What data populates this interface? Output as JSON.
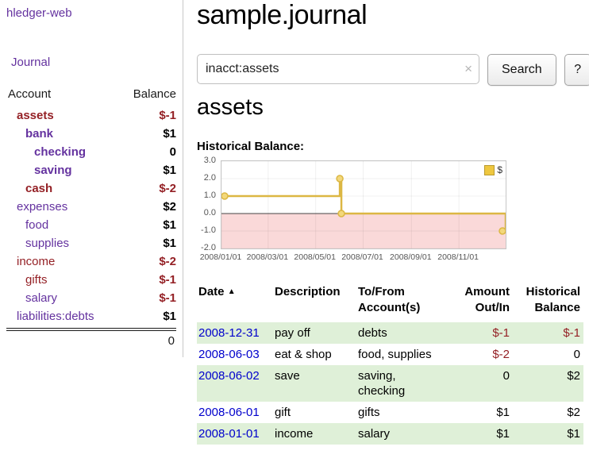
{
  "colors": {
    "purple": "#64329f",
    "negative": "#942025",
    "link": "#0000cc",
    "row_green": "#dff0d8"
  },
  "app": {
    "name": "hledger-web"
  },
  "nav": {
    "journal": "Journal"
  },
  "sidebar": {
    "header": {
      "account": "Account",
      "balance": "Balance"
    },
    "accounts": [
      {
        "name": "assets",
        "depth": 1,
        "balance": "$-1"
      },
      {
        "name": "bank",
        "depth": 2,
        "balance": "$1"
      },
      {
        "name": "checking",
        "depth": 3,
        "balance": "0"
      },
      {
        "name": "saving",
        "depth": 3,
        "balance": "$1"
      },
      {
        "name": "cash",
        "depth": 2,
        "balance": "$-2"
      },
      {
        "name": "expenses",
        "depth": 1,
        "balance": "$2"
      },
      {
        "name": "food",
        "depth": 2,
        "balance": "$1"
      },
      {
        "name": "supplies",
        "depth": 2,
        "balance": "$1"
      },
      {
        "name": "income",
        "depth": 1,
        "balance": "$-2"
      },
      {
        "name": "gifts",
        "depth": 2,
        "balance": "$-1"
      },
      {
        "name": "salary",
        "depth": 2,
        "balance": "$-1"
      },
      {
        "name": "liabilities:debts",
        "depth": 1,
        "balance": "$1"
      }
    ],
    "total": "0"
  },
  "main": {
    "title": "sample.journal",
    "search": {
      "value": "inacct:assets",
      "button": "Search",
      "help": "?",
      "clear_icon": "×"
    },
    "heading": "assets",
    "chart_label": "Historical Balance:"
  },
  "chart_data": {
    "type": "line",
    "step": true,
    "title": "Historical Balance:",
    "x_range": [
      "2008-01-01",
      "2008-12-31"
    ],
    "ylim": [
      -2.0,
      3.0
    ],
    "yticks": [
      3.0,
      2.0,
      1.0,
      0.0,
      -1.0,
      -2.0
    ],
    "xtick_labels": [
      "2008/01/01",
      "2008/03/01",
      "2008/05/01",
      "2008/07/01",
      "2008/09/01",
      "2008/11/01"
    ],
    "series": [
      {
        "name": "$",
        "points": [
          {
            "x": "2008-01-01",
            "y": 1
          },
          {
            "x": "2008-06-01",
            "y": 2
          },
          {
            "x": "2008-06-03",
            "y": 0
          },
          {
            "x": "2008-12-31",
            "y": -1
          }
        ]
      }
    ],
    "legend": {
      "label": "$",
      "position": "top-right",
      "swatch_color": "#eec73f"
    },
    "line_color": "#dcb743",
    "marker_fill": "#f3d87b",
    "below_zero_fill": "#fad9d9",
    "zero_line_color": "#444444",
    "grid": true
  },
  "register": {
    "columns": {
      "date": "Date",
      "description": "Description",
      "account": "To/From Account(s)",
      "amount": "Amount Out/In",
      "balance": "Historical Balance"
    },
    "sort_icon": "▲",
    "rows": [
      {
        "date": "2008-12-31",
        "description": "pay off",
        "account": "debts",
        "amount": "$-1",
        "balance": "$-1"
      },
      {
        "date": "2008-06-03",
        "description": "eat & shop",
        "account": "food, supplies",
        "amount": "$-2",
        "balance": "0"
      },
      {
        "date": "2008-06-02",
        "description": "save",
        "account": "saving, checking",
        "amount": "0",
        "balance": "$2"
      },
      {
        "date": "2008-06-01",
        "description": "gift",
        "account": "gifts",
        "amount": "$1",
        "balance": "$2"
      },
      {
        "date": "2008-01-01",
        "description": "income",
        "account": "salary",
        "amount": "$1",
        "balance": "$1"
      }
    ]
  }
}
